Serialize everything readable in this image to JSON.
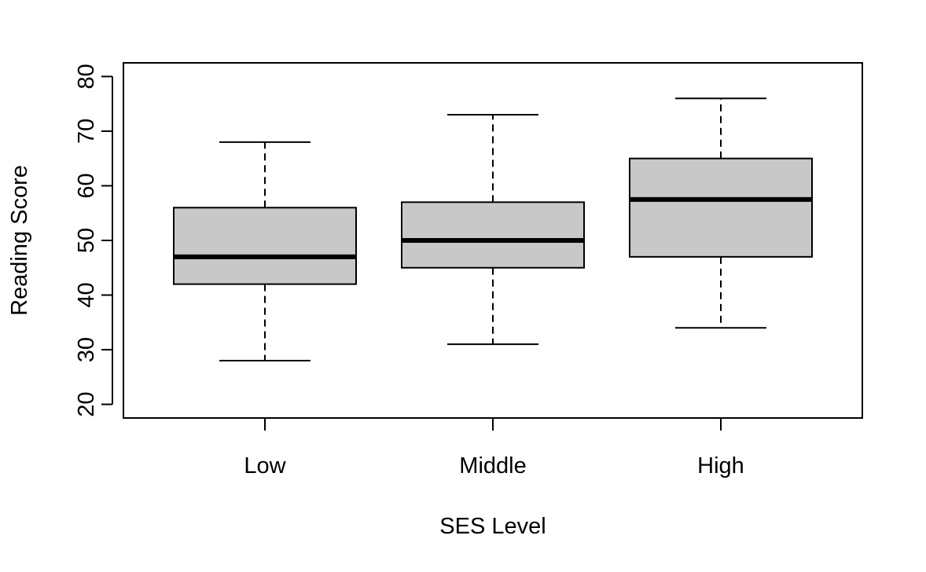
{
  "chart_data": {
    "type": "boxplot",
    "title": "",
    "xlabel": "SES Level",
    "ylabel": "Reading Score",
    "ylim": [
      17.5,
      82.5
    ],
    "yticks": [
      20,
      30,
      40,
      50,
      60,
      70,
      80
    ],
    "grid": false,
    "categories": [
      "Low",
      "Middle",
      "High"
    ],
    "boxes": [
      {
        "category": "Low",
        "whisker_low": 28,
        "q1": 42,
        "median": 47,
        "q3": 56,
        "whisker_high": 68
      },
      {
        "category": "Middle",
        "whisker_low": 31,
        "q1": 45,
        "median": 50,
        "q3": 57,
        "whisker_high": 73
      },
      {
        "category": "High",
        "whisker_low": 34,
        "q1": 47,
        "median": 57.5,
        "q3": 65,
        "whisker_high": 76
      }
    ],
    "colors": {
      "box_fill": "#c8c8c8",
      "stroke": "#000000"
    }
  }
}
